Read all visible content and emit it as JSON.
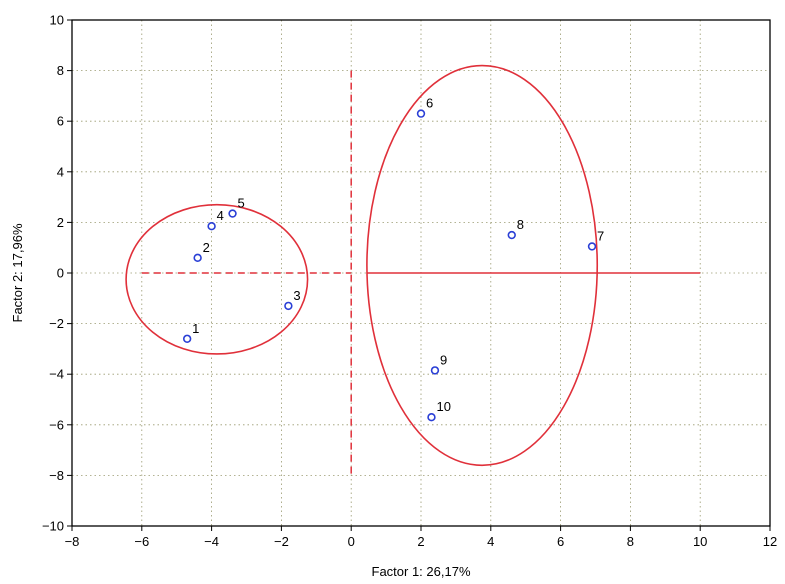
{
  "chart_data": {
    "type": "scatter",
    "xlabel": "Factor 1: 26,17%",
    "ylabel": "Factor 2: 17,96%",
    "xlim": [
      -8,
      12
    ],
    "ylim": [
      -10,
      10
    ],
    "xticks": [
      -8,
      -6,
      -4,
      -2,
      0,
      2,
      4,
      6,
      8,
      10,
      12
    ],
    "yticks": [
      -10,
      -8,
      -6,
      -4,
      -2,
      0,
      2,
      4,
      6,
      8,
      10
    ],
    "xtick_labels": [
      "−8",
      "−6",
      "−4",
      "−2",
      "0",
      "2",
      "4",
      "6",
      "8",
      "10",
      "12"
    ],
    "ytick_labels": [
      "−10",
      "−8",
      "−6",
      "−4",
      "−2",
      "0",
      "2",
      "4",
      "6",
      "8",
      "10"
    ],
    "grid": true,
    "points": [
      {
        "label": "1",
        "x": -4.7,
        "y": -2.6
      },
      {
        "label": "2",
        "x": -4.4,
        "y": 0.6
      },
      {
        "label": "3",
        "x": -1.8,
        "y": -1.3
      },
      {
        "label": "4",
        "x": -4.0,
        "y": 1.85
      },
      {
        "label": "5",
        "x": -3.4,
        "y": 2.35
      },
      {
        "label": "6",
        "x": 2.0,
        "y": 6.3
      },
      {
        "label": "7",
        "x": 6.9,
        "y": 1.05
      },
      {
        "label": "8",
        "x": 4.6,
        "y": 1.5
      },
      {
        "label": "9",
        "x": 2.4,
        "y": -3.85
      },
      {
        "label": "10",
        "x": 2.3,
        "y": -5.7
      }
    ],
    "ellipses": [
      {
        "cx": -3.85,
        "cy": -0.25,
        "rx": 2.6,
        "ry": 2.95
      },
      {
        "cx": 3.75,
        "cy": 0.3,
        "rx": 3.3,
        "ry": 7.9
      }
    ],
    "reference_lines": [
      {
        "x1": -6.0,
        "y1": 0,
        "x2": 0,
        "y2": 0,
        "style": "dashed"
      },
      {
        "x1": 0,
        "y1": 8,
        "x2": 0,
        "y2": -8,
        "style": "dashed"
      },
      {
        "x1": 0.45,
        "y1": 0,
        "x2": 10,
        "y2": 0,
        "style": "solid"
      }
    ],
    "colors": {
      "points": "#2a3fd6",
      "ellipse": "#e0303a",
      "grid": "#9a9a70"
    }
  }
}
